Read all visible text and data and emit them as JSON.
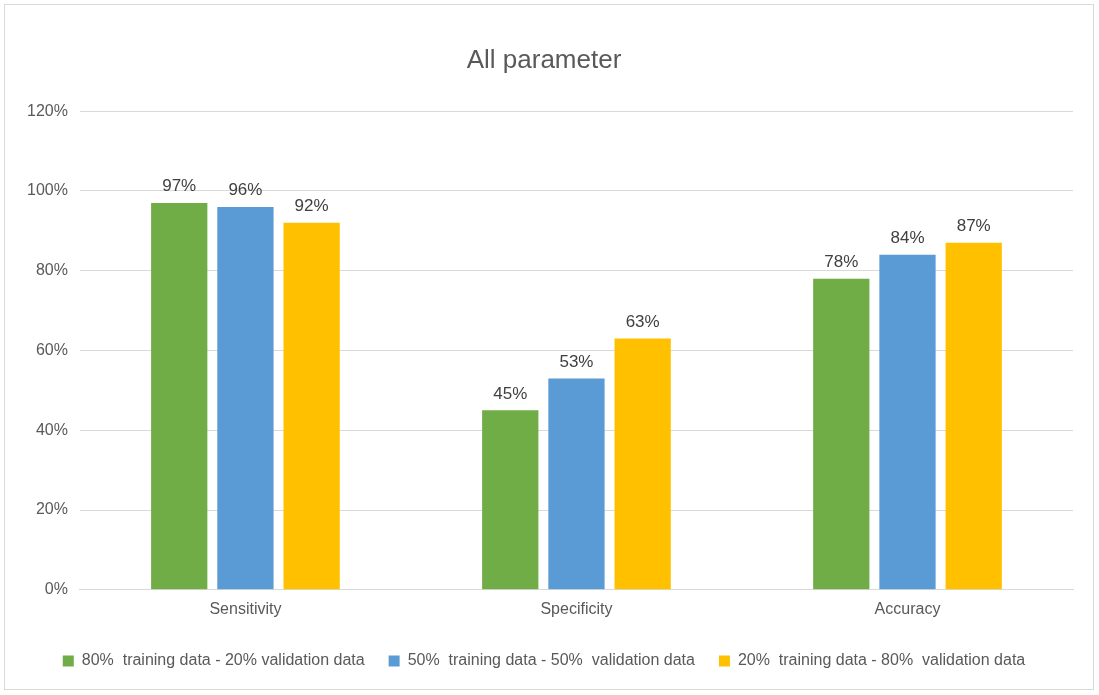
{
  "chart_data": {
    "type": "bar",
    "title": "All parameter",
    "categories": [
      "Sensitivity",
      "Specificity",
      "Accuracy"
    ],
    "series": [
      {
        "name": "80%  training data - 20% validation data",
        "color": "#70ad47",
        "values": [
          97,
          45,
          78
        ],
        "value_labels": [
          "97%",
          "45%",
          "78%"
        ]
      },
      {
        "name": "50%  training data - 50%  validation data",
        "color": "#5b9bd5",
        "values": [
          96,
          53,
          84
        ],
        "value_labels": [
          "96%",
          "53%",
          "84%"
        ]
      },
      {
        "name": "20%  training data - 80%  validation data",
        "color": "#ffc000",
        "values": [
          92,
          63,
          87
        ],
        "value_labels": [
          "92%",
          "63%",
          "87%"
        ]
      }
    ],
    "ylim": [
      0,
      120
    ],
    "yticks": [
      {
        "value": 0,
        "label": "0%"
      },
      {
        "value": 20,
        "label": "20%"
      },
      {
        "value": 40,
        "label": "40%"
      },
      {
        "value": 60,
        "label": "60%"
      },
      {
        "value": 80,
        "label": "80%"
      },
      {
        "value": 100,
        "label": "100%"
      },
      {
        "value": 120,
        "label": "120%"
      }
    ],
    "grid": "y",
    "legend": "bottom"
  }
}
